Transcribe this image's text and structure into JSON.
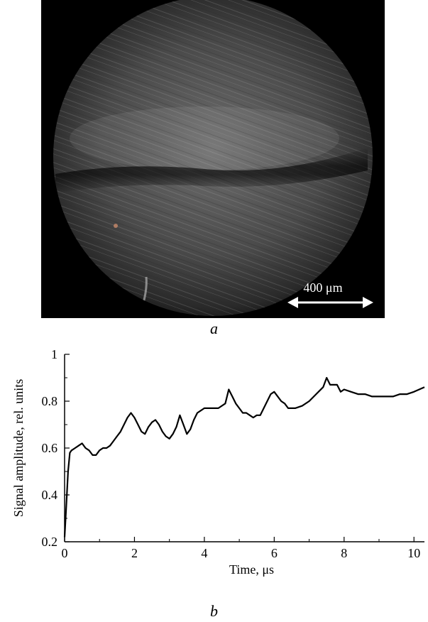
{
  "figure": {
    "panel_a_label": "a",
    "panel_b_label": "b",
    "scale_bar_label": "400 μm"
  },
  "chart_data": {
    "type": "line",
    "title": "",
    "xlabel": "Time, μs",
    "ylabel": "Signal amplitude, rel. units",
    "xlim": [
      0,
      10.3
    ],
    "ylim": [
      0.2,
      1.0
    ],
    "xticks": [
      0,
      2,
      4,
      6,
      8,
      10
    ],
    "yticks": [
      0.2,
      0.4,
      0.6,
      0.8,
      1.0
    ],
    "xtick_labels": [
      "0",
      "2",
      "4",
      "6",
      "8",
      "10"
    ],
    "ytick_labels": [
      "0.2",
      "0.4",
      "0.6",
      "0.8",
      "1"
    ],
    "grid": false,
    "series": [
      {
        "name": "",
        "x": [
          0.0,
          0.05,
          0.1,
          0.15,
          0.2,
          0.3,
          0.4,
          0.5,
          0.6,
          0.7,
          0.8,
          0.9,
          1.0,
          1.1,
          1.2,
          1.3,
          1.4,
          1.5,
          1.6,
          1.7,
          1.8,
          1.9,
          2.0,
          2.1,
          2.2,
          2.3,
          2.4,
          2.5,
          2.6,
          2.7,
          2.8,
          2.9,
          3.0,
          3.1,
          3.2,
          3.3,
          3.4,
          3.5,
          3.6,
          3.7,
          3.8,
          3.9,
          4.0,
          4.2,
          4.4,
          4.6,
          4.7,
          4.8,
          4.9,
          5.0,
          5.1,
          5.2,
          5.3,
          5.4,
          5.5,
          5.6,
          5.7,
          5.8,
          5.9,
          6.0,
          6.1,
          6.2,
          6.3,
          6.4,
          6.5,
          6.6,
          6.8,
          7.0,
          7.2,
          7.4,
          7.5,
          7.6,
          7.8,
          7.9,
          8.0,
          8.2,
          8.4,
          8.6,
          8.8,
          9.0,
          9.2,
          9.4,
          9.6,
          9.8,
          10.0,
          10.3
        ],
        "y": [
          0.22,
          0.36,
          0.5,
          0.58,
          0.59,
          0.6,
          0.61,
          0.62,
          0.6,
          0.59,
          0.57,
          0.57,
          0.59,
          0.6,
          0.6,
          0.61,
          0.63,
          0.65,
          0.67,
          0.7,
          0.73,
          0.75,
          0.73,
          0.7,
          0.67,
          0.66,
          0.69,
          0.71,
          0.72,
          0.7,
          0.67,
          0.65,
          0.64,
          0.66,
          0.69,
          0.74,
          0.7,
          0.66,
          0.68,
          0.72,
          0.75,
          0.76,
          0.77,
          0.77,
          0.77,
          0.79,
          0.85,
          0.82,
          0.79,
          0.77,
          0.75,
          0.75,
          0.74,
          0.73,
          0.74,
          0.74,
          0.77,
          0.8,
          0.83,
          0.84,
          0.82,
          0.8,
          0.79,
          0.77,
          0.77,
          0.77,
          0.78,
          0.8,
          0.83,
          0.86,
          0.9,
          0.87,
          0.87,
          0.84,
          0.85,
          0.84,
          0.83,
          0.83,
          0.82,
          0.82,
          0.82,
          0.82,
          0.83,
          0.83,
          0.84,
          0.86
        ]
      }
    ]
  }
}
